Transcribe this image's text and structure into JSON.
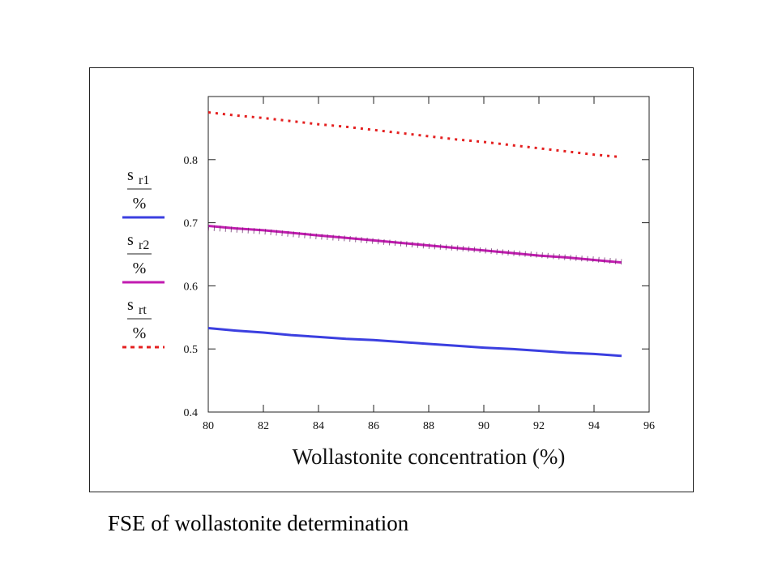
{
  "caption": "FSE of wollastonite determination",
  "chart_data": {
    "type": "line",
    "xlabel": "Wollastonite concentration (%)",
    "ylabel": "",
    "xlim": [
      80,
      96
    ],
    "ylim": [
      0.4,
      0.9
    ],
    "x_ticks": [
      "80",
      "82",
      "84",
      "86",
      "88",
      "90",
      "92",
      "94",
      "96"
    ],
    "y_ticks": [
      "0.4",
      "0.5",
      "0.6",
      "0.7",
      "0.8"
    ],
    "x": [
      80,
      81,
      82,
      83,
      84,
      85,
      86,
      87,
      88,
      89,
      90,
      91,
      92,
      93,
      94,
      95
    ],
    "series": [
      {
        "key": "sr1",
        "legend_top": "s",
        "legend_sub": "r1",
        "legend_bottom": "%",
        "color": "#3b3fe0",
        "style": "solid",
        "values": [
          0.533,
          0.529,
          0.526,
          0.522,
          0.519,
          0.516,
          0.514,
          0.511,
          0.508,
          0.505,
          0.502,
          0.5,
          0.497,
          0.494,
          0.492,
          0.489
        ]
      },
      {
        "key": "sr2",
        "legend_top": "s",
        "legend_sub": "r2",
        "legend_bottom": "%",
        "color": "#c21bb0",
        "style": "solid",
        "values": [
          0.695,
          0.691,
          0.688,
          0.684,
          0.68,
          0.676,
          0.672,
          0.668,
          0.664,
          0.66,
          0.656,
          0.652,
          0.648,
          0.645,
          0.641,
          0.637
        ]
      },
      {
        "key": "srt",
        "legend_top": "s",
        "legend_sub": "rt",
        "legend_bottom": "%",
        "color": "#e42020",
        "style": "dotted",
        "values": [
          0.875,
          0.87,
          0.866,
          0.861,
          0.856,
          0.852,
          0.847,
          0.842,
          0.837,
          0.832,
          0.828,
          0.823,
          0.818,
          0.813,
          0.808,
          0.804
        ]
      }
    ],
    "overlay": {
      "color": "#6a2a6a",
      "style": "hatched",
      "values": [
        0.692,
        0.689,
        0.686,
        0.682,
        0.678,
        0.675,
        0.671,
        0.667,
        0.663,
        0.66,
        0.656,
        0.652,
        0.649,
        0.645,
        0.642,
        0.638
      ]
    },
    "grid": false,
    "legend_position": "left"
  }
}
